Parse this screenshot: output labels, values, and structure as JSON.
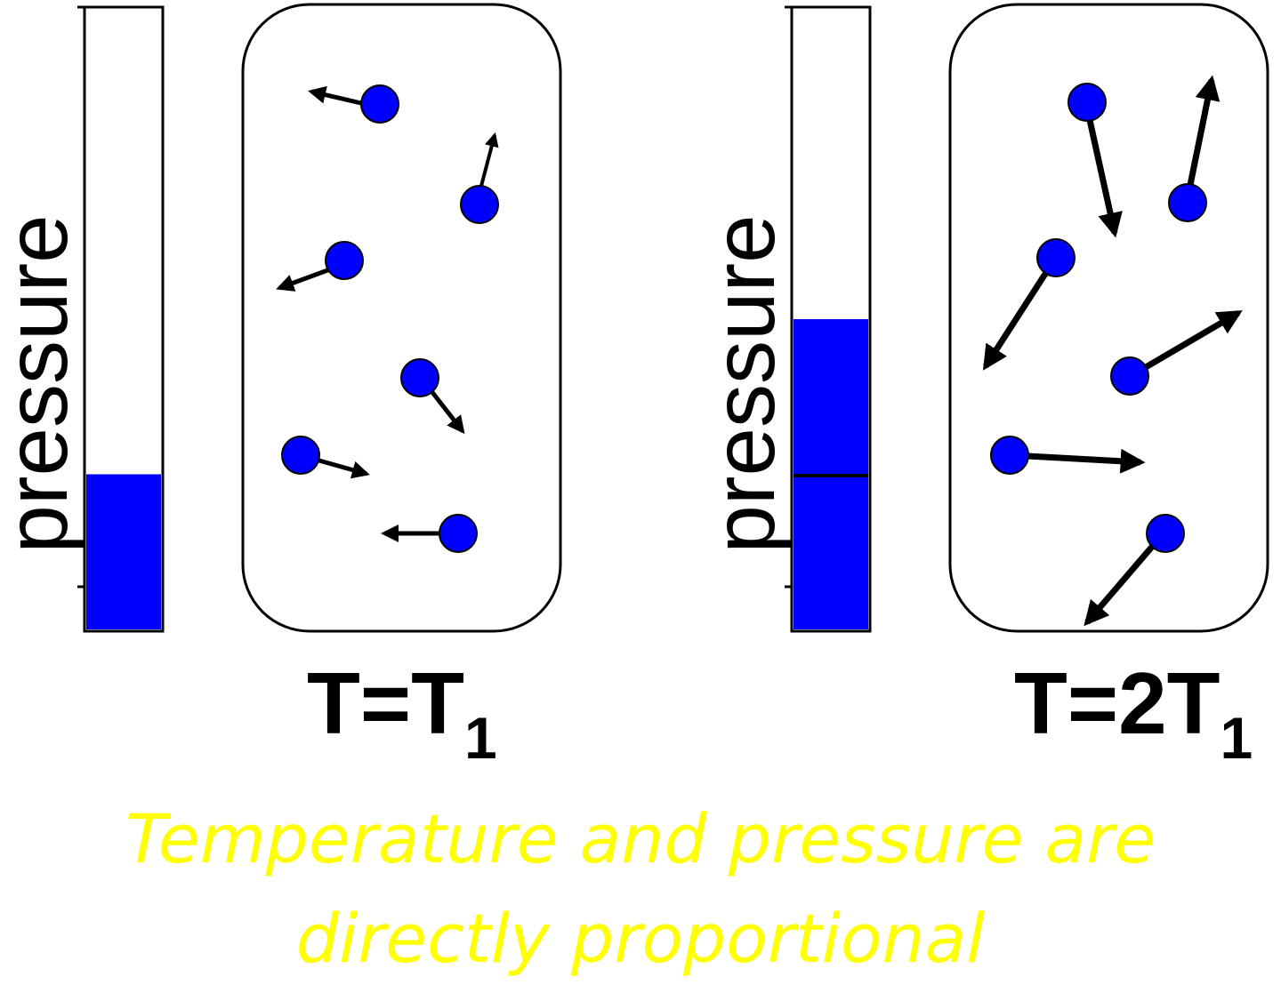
{
  "panels": [
    {
      "pressure_label": "pressure",
      "pressure_level": 0.25,
      "temperature_prefix": "T=T",
      "temperature_subscript": "1",
      "molecule_count": 6,
      "motion": "slow"
    },
    {
      "pressure_label": "pressure",
      "pressure_level": 0.5,
      "temperature_prefix": "T=2T",
      "temperature_subscript": "1",
      "molecule_count": 6,
      "motion": "fast"
    }
  ],
  "caption": {
    "line1": "Temperature and pressure are",
    "line2": "directly proportional"
  },
  "colors": {
    "molecule": "#0000ff",
    "pressure_fill": "#0000ff",
    "caption": "#ffff00",
    "outline": "#000000"
  }
}
